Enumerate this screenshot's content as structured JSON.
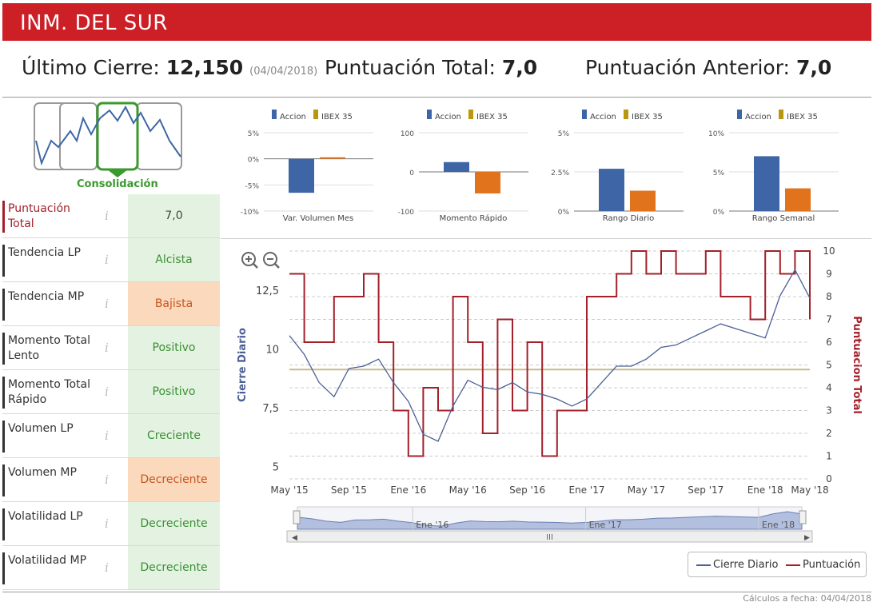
{
  "header": {
    "title": "INM. DEL SUR",
    "ultimo_cierre_label": "Último Cierre:",
    "ultimo_cierre_value": "12,150",
    "ultimo_cierre_date": "(04/04/2018)",
    "puntuacion_total_label": "Puntuación Total:",
    "puntuacion_total_value": "7,0",
    "puntuacion_anterior_label": "Puntuación Anterior:",
    "puntuacion_anterior_value": "7,0"
  },
  "phase": {
    "label": "Consolidación",
    "selected_panel": 3,
    "panels": 4
  },
  "indicators": [
    {
      "label": "Puntuación Total",
      "value": "7,0",
      "style": "neutral"
    },
    {
      "label": "Tendencia LP",
      "value": "Alcista",
      "style": "green"
    },
    {
      "label": "Tendencia MP",
      "value": "Bajista",
      "style": "orange"
    },
    {
      "label": "Momento Total Lento",
      "value": "Positivo",
      "style": "green"
    },
    {
      "label": "Momento Total Rápido",
      "value": "Positivo",
      "style": "green"
    },
    {
      "label": "Volumen LP",
      "value": "Creciente",
      "style": "green"
    },
    {
      "label": "Volumen MP",
      "value": "Decreciente",
      "style": "orange"
    },
    {
      "label": "Volatilidad LP",
      "value": "Decreciente",
      "style": "green"
    },
    {
      "label": "Volatilidad MP",
      "value": "Decreciente",
      "style": "green"
    }
  ],
  "info_glyph": "i",
  "colors": {
    "brand_red": "#cc1f26",
    "accion_blue": "#3e66a6",
    "ibex_orange": "#e0731c",
    "ibex_legend_gold": "#b8960e",
    "score_red": "#a3202a",
    "price_blue": "#4a5f94",
    "neutral_line": "#c8b98a",
    "navigator_fill": "#b3bfde"
  },
  "footer": {
    "text": "Cálculos a fecha: 04/04/2018"
  },
  "legend": {
    "price": "Cierre Diario",
    "score": "Puntuación"
  },
  "navigator": {
    "labels": [
      "Ene '16",
      "Ene '17",
      "Ene '18"
    ],
    "scroll_glyph": "III"
  },
  "chart_data": [
    {
      "type": "bar",
      "categories": [
        "Var. Volumen Mes"
      ],
      "series": [
        {
          "name": "Accion",
          "values": [
            -6.5
          ]
        },
        {
          "name": "IBEX 35",
          "values": [
            0.3
          ]
        }
      ],
      "ylim": [
        -10,
        5
      ],
      "yticks": [
        "5%",
        "0%",
        "-5%",
        "-10%"
      ]
    },
    {
      "type": "bar",
      "categories": [
        "Momento Rápido"
      ],
      "series": [
        {
          "name": "Accion",
          "values": [
            25
          ]
        },
        {
          "name": "IBEX 35",
          "values": [
            -55
          ]
        }
      ],
      "ylim": [
        -100,
        100
      ],
      "yticks": [
        "100",
        "0",
        "-100"
      ]
    },
    {
      "type": "bar",
      "categories": [
        "Rango Diario"
      ],
      "series": [
        {
          "name": "Accion",
          "values": [
            2.7
          ]
        },
        {
          "name": "IBEX 35",
          "values": [
            1.3
          ]
        }
      ],
      "ylim": [
        0,
        5
      ],
      "yticks": [
        "5%",
        "2.5%",
        "0%"
      ]
    },
    {
      "type": "bar",
      "categories": [
        "Rango Semanal"
      ],
      "series": [
        {
          "name": "Accion",
          "values": [
            7.0
          ]
        },
        {
          "name": "IBEX 35",
          "values": [
            2.9
          ]
        }
      ],
      "ylim": [
        0,
        10
      ],
      "yticks": [
        "10%",
        "5%",
        "0%"
      ]
    },
    {
      "type": "line",
      "x": [
        "May '15",
        "Jun '15",
        "Jul '15",
        "Ago '15",
        "Sep '15",
        "Oct '15",
        "Nov '15",
        "Dic '15",
        "Ene '16",
        "Feb '16",
        "Mar '16",
        "Abr '16",
        "May '16",
        "Jun '16",
        "Jul '16",
        "Ago '16",
        "Sep '16",
        "Oct '16",
        "Nov '16",
        "Dic '16",
        "Ene '17",
        "Feb '17",
        "Mar '17",
        "Abr '17",
        "May '17",
        "Jun '17",
        "Jul '17",
        "Ago '17",
        "Sep '17",
        "Oct '17",
        "Nov '17",
        "Dic '17",
        "Ene '18",
        "Feb '18",
        "Mar '18",
        "Abr '18"
      ],
      "xticks": [
        "May '15",
        "Sep '15",
        "Ene '16",
        "May '16",
        "Sep '16",
        "Ene '17",
        "May '17",
        "Sep '17",
        "Ene '18",
        "May '18"
      ],
      "series": [
        {
          "name": "Cierre Diario",
          "axis": "left",
          "values": [
            10.6,
            9.8,
            8.6,
            8.0,
            9.2,
            9.3,
            9.6,
            8.6,
            7.8,
            6.4,
            6.1,
            7.6,
            8.7,
            8.4,
            8.3,
            8.6,
            8.2,
            8.1,
            7.9,
            7.6,
            7.9,
            8.6,
            9.3,
            9.3,
            9.6,
            10.1,
            10.2,
            10.5,
            10.8,
            11.1,
            10.9,
            10.7,
            10.5,
            12.3,
            13.4,
            12.2
          ]
        },
        {
          "name": "Puntuación",
          "axis": "right",
          "values": [
            9,
            6,
            6,
            8,
            8,
            9,
            6,
            3,
            1,
            4,
            3,
            8,
            6,
            2,
            7,
            3,
            6,
            1,
            3,
            3,
            8,
            8,
            9,
            10,
            9,
            10,
            9,
            9,
            10,
            8,
            8,
            7,
            10,
            9,
            10,
            7
          ]
        },
        {
          "name": "",
          "axis": "right",
          "values": [
            4.8,
            4.8,
            4.8,
            4.8,
            4.8,
            4.8,
            4.8,
            4.8,
            4.8,
            4.8,
            4.8,
            4.8,
            4.8,
            4.8,
            4.8,
            4.8,
            4.8,
            4.8,
            4.8,
            4.8,
            4.8,
            4.8,
            4.8,
            4.8,
            4.8,
            4.8,
            4.8,
            4.8,
            4.8,
            4.8,
            4.8,
            4.8,
            4.8,
            4.8,
            4.8,
            4.8
          ]
        }
      ],
      "ylabel": "Cierre Diario",
      "y2label": "Puntuacion Total",
      "ylim": [
        4.5,
        14.2
      ],
      "y2lim": [
        0,
        10
      ],
      "yticks": [
        "5",
        "7,5",
        "10",
        "12,5"
      ],
      "y2ticks": [
        "0",
        "1",
        "2",
        "3",
        "4",
        "5",
        "6",
        "7",
        "8",
        "9",
        "10"
      ],
      "grid": true,
      "legend": "bottom-right"
    }
  ]
}
